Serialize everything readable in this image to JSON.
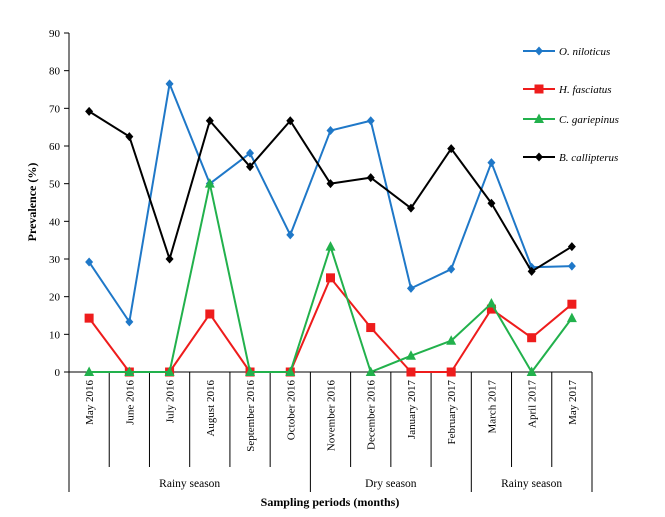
{
  "chart_data": {
    "type": "line",
    "xlabel": "Sampling periods  (months)",
    "ylabel": "Prevalence  (%)",
    "ylim": [
      0,
      90
    ],
    "yticks": [
      0,
      10,
      20,
      30,
      40,
      50,
      60,
      70,
      80,
      90
    ],
    "grid": false,
    "legend_position": "top-right",
    "categories": [
      "May 2016",
      "June 2016",
      "July 2016",
      "August 2016",
      "September 2016",
      "October 2016",
      "November 2016",
      "December 2016",
      "January 2017",
      "February 2017",
      "March 2017",
      "April 2017",
      "May 2017"
    ],
    "series": [
      {
        "name": "O. niloticus",
        "color": "#1f78c8",
        "marker": "diamond",
        "values": [
          29.2,
          13.3,
          76.5,
          50.0,
          58.1,
          36.4,
          64.1,
          66.7,
          22.2,
          27.3,
          55.6,
          27.8,
          28.1
        ]
      },
      {
        "name": "H. fasciatus",
        "color": "#ee1c1c",
        "marker": "square",
        "values": [
          14.3,
          0,
          0,
          15.4,
          0,
          0,
          25.0,
          11.8,
          0,
          0,
          16.7,
          9.1,
          18.0
        ]
      },
      {
        "name": "C. gariepinus",
        "color": "#22b14c",
        "marker": "triangle",
        "values": [
          0,
          0,
          0,
          50.0,
          0,
          0,
          33.3,
          0,
          4.3,
          8.3,
          18.2,
          0,
          14.3
        ]
      },
      {
        "name": "B. callipterus",
        "color": "#000000",
        "marker": "diamond",
        "values": [
          69.2,
          62.5,
          30.0,
          66.7,
          54.5,
          66.7,
          50.0,
          51.6,
          43.5,
          59.3,
          44.8,
          26.7,
          33.3
        ]
      }
    ],
    "season_groups": [
      {
        "label": "Rainy season",
        "start": 0,
        "end": 5
      },
      {
        "label": "Dry season",
        "start": 6,
        "end": 9
      },
      {
        "label": "Rainy season",
        "start": 10,
        "end": 12
      }
    ]
  }
}
